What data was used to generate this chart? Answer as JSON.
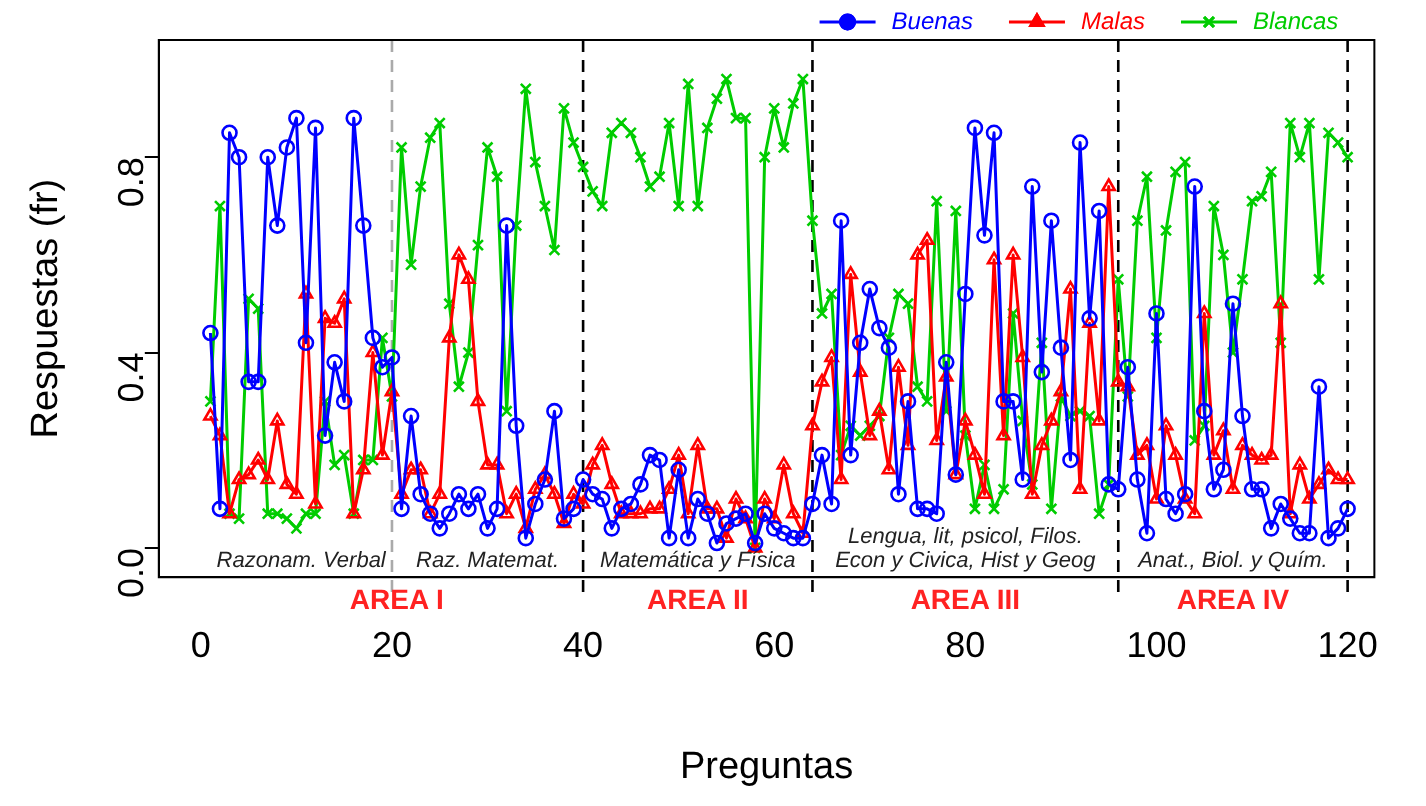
{
  "chart_data": {
    "type": "line",
    "xlabel": "Preguntas",
    "ylabel": "Respuestas (fr)",
    "xlim": [
      -4.4,
      122.8
    ],
    "xticks": [
      0,
      20,
      40,
      60,
      80,
      100,
      120
    ],
    "ylim": [
      -0.06,
      1.04
    ],
    "yticks": [
      {
        "value": 0,
        "label": "0.0"
      },
      {
        "value": 0.4,
        "label": "0.4"
      },
      {
        "value": 0.8,
        "label": "0.8"
      }
    ],
    "grid": false,
    "legend": "top right",
    "line_style": "solid",
    "x": [
      1,
      2,
      3,
      4,
      5,
      6,
      7,
      8,
      9,
      10,
      11,
      12,
      13,
      14,
      15,
      16,
      17,
      18,
      19,
      20,
      21,
      22,
      23,
      24,
      25,
      26,
      27,
      28,
      29,
      30,
      31,
      32,
      33,
      34,
      35,
      36,
      37,
      38,
      39,
      40,
      41,
      42,
      43,
      44,
      45,
      46,
      47,
      48,
      49,
      50,
      51,
      52,
      53,
      54,
      55,
      56,
      57,
      58,
      59,
      60,
      61,
      62,
      63,
      64,
      65,
      66,
      67,
      68,
      69,
      70,
      71,
      72,
      73,
      74,
      75,
      76,
      77,
      78,
      79,
      80,
      81,
      82,
      83,
      84,
      85,
      86,
      87,
      88,
      89,
      90,
      91,
      92,
      93,
      94,
      95,
      96,
      97,
      98,
      99,
      100,
      101,
      102,
      103,
      104,
      105,
      106,
      107,
      108,
      109,
      110,
      111,
      112,
      113,
      114,
      115,
      116,
      117,
      118,
      119,
      120
    ],
    "series": [
      {
        "name": "Buenas",
        "color": "#0000ff",
        "marker": "circle",
        "values": [
          0.44,
          0.08,
          0.85,
          0.8,
          0.34,
          0.34,
          0.8,
          0.66,
          0.82,
          0.88,
          0.42,
          0.86,
          0.23,
          0.38,
          0.3,
          0.88,
          0.66,
          0.43,
          0.37,
          0.39,
          0.08,
          0.27,
          0.11,
          0.07,
          0.04,
          0.07,
          0.11,
          0.08,
          0.11,
          0.04,
          0.08,
          0.66,
          0.25,
          0.02,
          0.09,
          0.14,
          0.28,
          0.06,
          0.08,
          0.14,
          0.11,
          0.1,
          0.04,
          0.08,
          0.09,
          0.13,
          0.19,
          0.18,
          0.02,
          0.16,
          0.02,
          0.1,
          0.07,
          0.01,
          0.05,
          0.06,
          0.07,
          0.01,
          0.07,
          0.04,
          0.03,
          0.02,
          0.02,
          0.09,
          0.19,
          0.09,
          0.67,
          0.19,
          0.42,
          0.53,
          0.45,
          0.41,
          0.11,
          0.3,
          0.08,
          0.08,
          0.07,
          0.38,
          0.15,
          0.52,
          0.86,
          0.64,
          0.85,
          0.3,
          0.3,
          0.14,
          0.74,
          0.36,
          0.67,
          0.41,
          0.18,
          0.83,
          0.47,
          0.69,
          0.13,
          0.12,
          0.37,
          0.14,
          0.03,
          0.48,
          0.1,
          0.07,
          0.11,
          0.74,
          0.28,
          0.12,
          0.16,
          0.5,
          0.27,
          0.12,
          0.12,
          0.04,
          0.09,
          0.06,
          0.03,
          0.03,
          0.33,
          0.02,
          0.04,
          0.08
        ]
      },
      {
        "name": "Malas",
        "color": "#ff0000",
        "marker": "triangle",
        "values": [
          0.27,
          0.23,
          0.07,
          0.14,
          0.15,
          0.18,
          0.14,
          0.26,
          0.13,
          0.11,
          0.52,
          0.09,
          0.47,
          0.46,
          0.51,
          0.07,
          0.16,
          0.4,
          0.19,
          0.32,
          0.11,
          0.16,
          0.16,
          0.07,
          0.11,
          0.43,
          0.6,
          0.55,
          0.3,
          0.17,
          0.17,
          0.07,
          0.11,
          0.04,
          0.12,
          0.15,
          0.11,
          0.05,
          0.11,
          0.09,
          0.17,
          0.21,
          0.13,
          0.07,
          0.07,
          0.07,
          0.08,
          0.08,
          0.12,
          0.19,
          0.07,
          0.21,
          0.08,
          0.08,
          0.02,
          0.1,
          0.06,
          0.0,
          0.1,
          0.06,
          0.17,
          0.07,
          0.03,
          0.25,
          0.34,
          0.39,
          0.14,
          0.56,
          0.36,
          0.23,
          0.28,
          0.16,
          0.37,
          0.21,
          0.6,
          0.63,
          0.22,
          0.35,
          0.15,
          0.26,
          0.19,
          0.11,
          0.59,
          0.23,
          0.6,
          0.39,
          0.11,
          0.21,
          0.26,
          0.32,
          0.53,
          0.12,
          0.46,
          0.26,
          0.74,
          0.34,
          0.33,
          0.19,
          0.21,
          0.1,
          0.25,
          0.19,
          0.1,
          0.07,
          0.48,
          0.19,
          0.24,
          0.12,
          0.21,
          0.19,
          0.18,
          0.19,
          0.5,
          0.07,
          0.17,
          0.1,
          0.13,
          0.16,
          0.14,
          0.14
        ]
      },
      {
        "name": "Blancas",
        "color": "#00cc00",
        "marker": "cross",
        "values": [
          0.3,
          0.7,
          0.07,
          0.06,
          0.51,
          0.49,
          0.07,
          0.07,
          0.06,
          0.04,
          0.07,
          0.07,
          0.3,
          0.17,
          0.19,
          0.07,
          0.18,
          0.18,
          0.43,
          0.31,
          0.82,
          0.58,
          0.74,
          0.84,
          0.87,
          0.5,
          0.33,
          0.4,
          0.62,
          0.82,
          0.76,
          0.28,
          0.66,
          0.94,
          0.79,
          0.7,
          0.61,
          0.9,
          0.83,
          0.78,
          0.73,
          0.7,
          0.85,
          0.87,
          0.85,
          0.8,
          0.74,
          0.76,
          0.87,
          0.7,
          0.95,
          0.7,
          0.86,
          0.92,
          0.96,
          0.88,
          0.88,
          0.0,
          0.8,
          0.9,
          0.82,
          0.91,
          0.96,
          0.67,
          0.48,
          0.52,
          0.19,
          0.25,
          0.23,
          0.25,
          0.27,
          0.43,
          0.52,
          0.5,
          0.33,
          0.3,
          0.71,
          0.28,
          0.69,
          0.23,
          0.08,
          0.17,
          0.08,
          0.12,
          0.48,
          0.26,
          0.13,
          0.42,
          0.08,
          0.31,
          0.27,
          0.28,
          0.27,
          0.07,
          0.13,
          0.55,
          0.31,
          0.67,
          0.76,
          0.43,
          0.65,
          0.77,
          0.79,
          0.22,
          0.25,
          0.7,
          0.6,
          0.4,
          0.55,
          0.71,
          0.72,
          0.77,
          0.42,
          0.87,
          0.8,
          0.87,
          0.55,
          0.85,
          0.83,
          0.8
        ]
      }
    ],
    "ref_lines": [
      {
        "axis": "x",
        "value": 20,
        "color": "#aaaaaa",
        "line_style": "dashed"
      },
      {
        "axis": "x",
        "value": 40,
        "color": "#000000",
        "line_style": "dashed"
      },
      {
        "axis": "x",
        "value": 64,
        "color": "#000000",
        "line_style": "dashed"
      },
      {
        "axis": "x",
        "value": 96,
        "color": "#000000",
        "line_style": "dashed"
      },
      {
        "axis": "x",
        "value": 120,
        "color": "#000000",
        "line_style": "dashed"
      }
    ],
    "annotations": [
      "Razonam. Verbal",
      "Raz. Matemat.",
      "Matemática y Física",
      "Lengua, lit, psicol, Filos.",
      "Econ y Civica, Hist y Geog",
      "Anat., Biol. y Quím.",
      "AREA I",
      "AREA II",
      "AREA III",
      "AREA IV"
    ]
  }
}
